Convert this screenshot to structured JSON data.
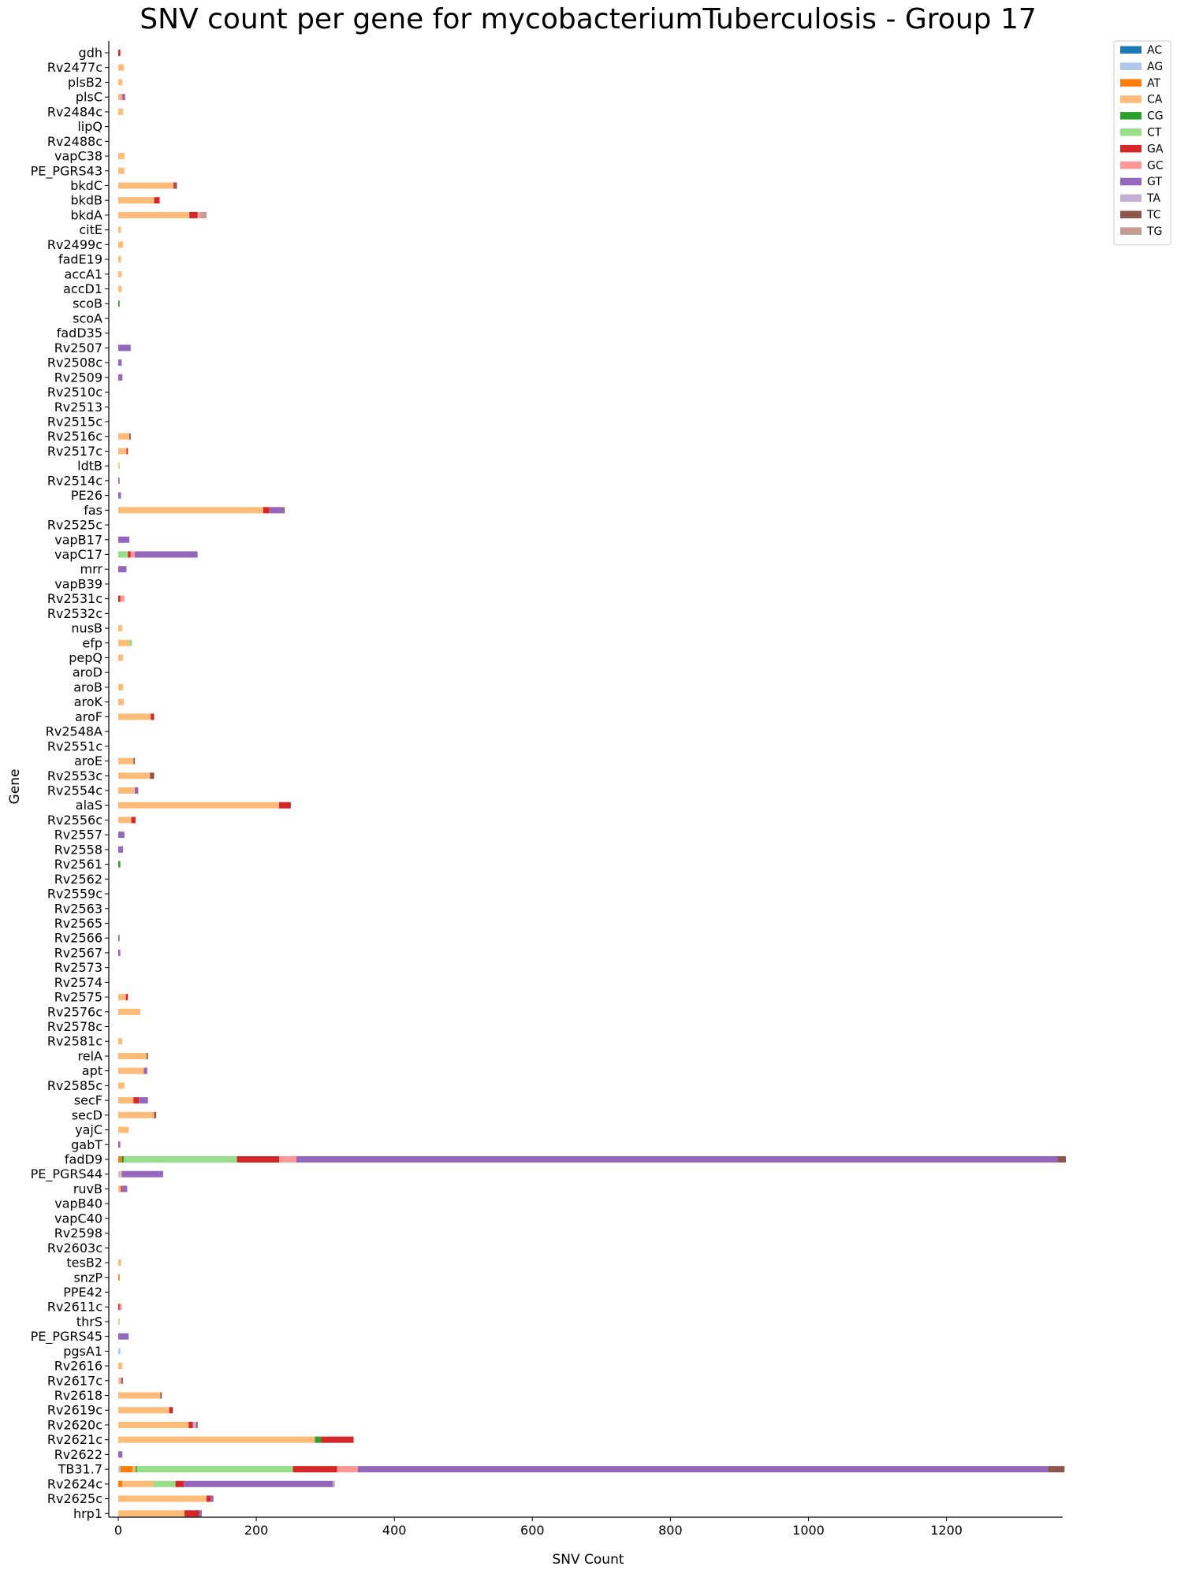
{
  "chart_data": {
    "type": "bar",
    "orientation": "horizontal",
    "stacked": true,
    "title": "SNV count per gene for mycobacteriumTuberculosis - Group 17",
    "xlabel": "SNV Count",
    "ylabel": "Gene",
    "xlim": [
      -10,
      1375
    ],
    "xticks": [
      0,
      200,
      400,
      600,
      800,
      1000,
      1200
    ],
    "grid": false,
    "legend_position": "top-right, outside plot",
    "series_names": [
      "AC",
      "AG",
      "AT",
      "CA",
      "CG",
      "CT",
      "GA",
      "GC",
      "GT",
      "TA",
      "TC",
      "TG"
    ],
    "colors": {
      "AC": "#1f77b4",
      "AG": "#aec7e8",
      "AT": "#ff7f0e",
      "CA": "#ffbb78",
      "CG": "#2ca02c",
      "CT": "#98df8a",
      "GA": "#d62728",
      "GC": "#ff9896",
      "GT": "#9467bd",
      "TA": "#c5b0d5",
      "TC": "#8c564b",
      "TG": "#c49c94"
    },
    "genes": [
      {
        "name": "gdh",
        "values": {
          "GA": 3
        }
      },
      {
        "name": "Rv2477c",
        "values": {
          "CA": 8
        }
      },
      {
        "name": "plsB2",
        "values": {
          "CA": 6
        }
      },
      {
        "name": "plsC",
        "values": {
          "CA": 4,
          "GC": 2,
          "GT": 4
        }
      },
      {
        "name": "Rv2484c",
        "values": {
          "CA": 7
        }
      },
      {
        "name": "lipQ",
        "values": {}
      },
      {
        "name": "Rv2488c",
        "values": {}
      },
      {
        "name": "vapC38",
        "values": {
          "CA": 9
        }
      },
      {
        "name": "PE_PGRS43",
        "values": {
          "CA": 9
        }
      },
      {
        "name": "bkdC",
        "values": {
          "CA": 80,
          "GA": 2,
          "TC": 3
        }
      },
      {
        "name": "bkdB",
        "values": {
          "CA": 52,
          "GA": 8
        }
      },
      {
        "name": "bkdA",
        "values": {
          "CA": 103,
          "GA": 12,
          "GC": 4,
          "TG": 9
        }
      },
      {
        "name": "citE",
        "values": {
          "CA": 4
        }
      },
      {
        "name": "Rv2499c",
        "values": {
          "CA": 7
        }
      },
      {
        "name": "fadE19",
        "values": {
          "CA": 4
        }
      },
      {
        "name": "accA1",
        "values": {
          "CA": 5
        }
      },
      {
        "name": "accD1",
        "values": {
          "CA": 5
        }
      },
      {
        "name": "scoB",
        "values": {
          "CG": 2
        }
      },
      {
        "name": "scoA",
        "values": {}
      },
      {
        "name": "fadD35",
        "values": {}
      },
      {
        "name": "Rv2507",
        "values": {
          "GT": 18
        }
      },
      {
        "name": "Rv2508c",
        "values": {
          "GT": 5
        }
      },
      {
        "name": "Rv2509",
        "values": {
          "GT": 6
        }
      },
      {
        "name": "Rv2510c",
        "values": {}
      },
      {
        "name": "Rv2513",
        "values": {}
      },
      {
        "name": "Rv2515c",
        "values": {}
      },
      {
        "name": "Rv2516c",
        "values": {
          "CA": 16,
          "TC": 2
        }
      },
      {
        "name": "Rv2517c",
        "values": {
          "CA": 12,
          "GA": 2
        }
      },
      {
        "name": "ldtB",
        "values": {
          "CA": 2
        }
      },
      {
        "name": "Rv2514c",
        "values": {
          "GT": 2
        }
      },
      {
        "name": "PE26",
        "values": {
          "GT": 4
        }
      },
      {
        "name": "fas",
        "values": {
          "CA": 210,
          "GA": 9,
          "GT": 20,
          "TC": 2
        }
      },
      {
        "name": "Rv2525c",
        "values": {}
      },
      {
        "name": "vapB17",
        "values": {
          "GT": 16
        }
      },
      {
        "name": "vapC17",
        "values": {
          "CT": 14,
          "GA": 4,
          "GC": 6,
          "GT": 91
        }
      },
      {
        "name": "mrr",
        "values": {
          "GT": 12
        }
      },
      {
        "name": "vapB39",
        "values": {}
      },
      {
        "name": "Rv2531c",
        "values": {
          "GC": 6,
          "GA": 3
        }
      },
      {
        "name": "Rv2532c",
        "values": {}
      },
      {
        "name": "nusB",
        "values": {
          "CA": 6
        }
      },
      {
        "name": "efp",
        "values": {
          "CA": 16,
          "CT": 4
        }
      },
      {
        "name": "pepQ",
        "values": {
          "CA": 7
        }
      },
      {
        "name": "aroD",
        "values": {}
      },
      {
        "name": "aroB",
        "values": {
          "CA": 7
        }
      },
      {
        "name": "aroK",
        "values": {
          "CA": 8
        }
      },
      {
        "name": "aroF",
        "values": {
          "CA": 47,
          "GA": 5
        }
      },
      {
        "name": "Rv2548A",
        "values": {}
      },
      {
        "name": "Rv2551c",
        "values": {}
      },
      {
        "name": "aroE",
        "values": {
          "CA": 22,
          "TC": 2
        }
      },
      {
        "name": "Rv2553c",
        "values": {
          "CA": 46,
          "TC": 6
        }
      },
      {
        "name": "Rv2554c",
        "values": {
          "CA": 24,
          "GT": 5
        }
      },
      {
        "name": "alaS",
        "values": {
          "CA": 233,
          "GA": 17
        }
      },
      {
        "name": "Rv2556c",
        "values": {
          "CA": 19,
          "GA": 6
        }
      },
      {
        "name": "Rv2557",
        "values": {
          "GT": 9
        }
      },
      {
        "name": "Rv2558",
        "values": {
          "GT": 7
        }
      },
      {
        "name": "Rv2561",
        "values": {
          "CG": 3
        }
      },
      {
        "name": "Rv2562",
        "values": {}
      },
      {
        "name": "Rv2559c",
        "values": {}
      },
      {
        "name": "Rv2563",
        "values": {}
      },
      {
        "name": "Rv2565",
        "values": {}
      },
      {
        "name": "Rv2566",
        "values": {
          "GT": 2
        }
      },
      {
        "name": "Rv2567",
        "values": {
          "GT": 3
        }
      },
      {
        "name": "Rv2573",
        "values": {}
      },
      {
        "name": "Rv2574",
        "values": {}
      },
      {
        "name": "Rv2575",
        "values": {
          "CA": 11,
          "GA": 3
        }
      },
      {
        "name": "Rv2576c",
        "values": {
          "CA": 32
        }
      },
      {
        "name": "Rv2578c",
        "values": {}
      },
      {
        "name": "Rv2581c",
        "values": {
          "CA": 6
        }
      },
      {
        "name": "relA",
        "values": {
          "CA": 41,
          "TC": 2
        }
      },
      {
        "name": "apt",
        "values": {
          "CA": 37,
          "GT": 5
        }
      },
      {
        "name": "Rv2585c",
        "values": {
          "CA": 9
        }
      },
      {
        "name": "secF",
        "values": {
          "CA": 22,
          "GA": 8,
          "GT": 13
        }
      },
      {
        "name": "secD",
        "values": {
          "CA": 52,
          "TC": 3
        }
      },
      {
        "name": "yajC",
        "values": {
          "CA": 15
        }
      },
      {
        "name": "gabT",
        "values": {
          "GT": 3
        }
      },
      {
        "name": "fadD9",
        "values": {
          "AT": 5,
          "CG": 3,
          "CT": 164,
          "GA": 61,
          "GC": 25,
          "GT": 1103,
          "TC": 12
        }
      },
      {
        "name": "PE_PGRS44",
        "values": {
          "CA": 2,
          "AG": 3,
          "GT": 60
        }
      },
      {
        "name": "ruvB",
        "values": {
          "CA": 4,
          "GA": 2,
          "GT": 7
        }
      },
      {
        "name": "vapB40",
        "values": {}
      },
      {
        "name": "vapC40",
        "values": {}
      },
      {
        "name": "Rv2598",
        "values": {}
      },
      {
        "name": "Rv2603c",
        "values": {}
      },
      {
        "name": "tesB2",
        "values": {
          "CA": 4
        }
      },
      {
        "name": "snzP",
        "values": {
          "AT": 2
        }
      },
      {
        "name": "PPE42",
        "values": {}
      },
      {
        "name": "Rv2611c",
        "values": {
          "GC": 3,
          "GA": 2
        }
      },
      {
        "name": "thrS",
        "values": {
          "CA": 2
        }
      },
      {
        "name": "PE_PGRS45",
        "values": {
          "GT": 15
        }
      },
      {
        "name": "pgsA1",
        "values": {
          "AG": 3
        }
      },
      {
        "name": "Rv2616",
        "values": {
          "CA": 6
        }
      },
      {
        "name": "Rv2617c",
        "values": {
          "CA": 4,
          "GT": 3
        }
      },
      {
        "name": "Rv2618",
        "values": {
          "CA": 61,
          "TC": 2
        }
      },
      {
        "name": "Rv2619c",
        "values": {
          "CA": 74,
          "GA": 5
        }
      },
      {
        "name": "Rv2620c",
        "values": {
          "CA": 102,
          "GA": 6,
          "TC": 2,
          "TA": 5
        }
      },
      {
        "name": "Rv2621c",
        "values": {
          "CA": 285,
          "CG": 9,
          "GA": 47
        }
      },
      {
        "name": "Rv2622",
        "values": {
          "GT": 6
        }
      },
      {
        "name": "TB31.7",
        "values": {
          "CA": 4,
          "AG": 3,
          "AT": 18,
          "CG": 2,
          "CT": 226,
          "GA": 64,
          "GC": 30,
          "GT": 1000,
          "TC": 24
        }
      },
      {
        "name": "Rv2624c",
        "values": {
          "AT": 6,
          "CA": 45,
          "CT": 32,
          "GA": 12,
          "GT": 216,
          "TA": 3
        }
      },
      {
        "name": "Rv2625c",
        "values": {
          "CA": 128,
          "GA": 6,
          "GT": 4
        }
      },
      {
        "name": "hrp1",
        "values": {
          "CA": 96,
          "GA": 21,
          "GT": 4
        }
      }
    ]
  }
}
